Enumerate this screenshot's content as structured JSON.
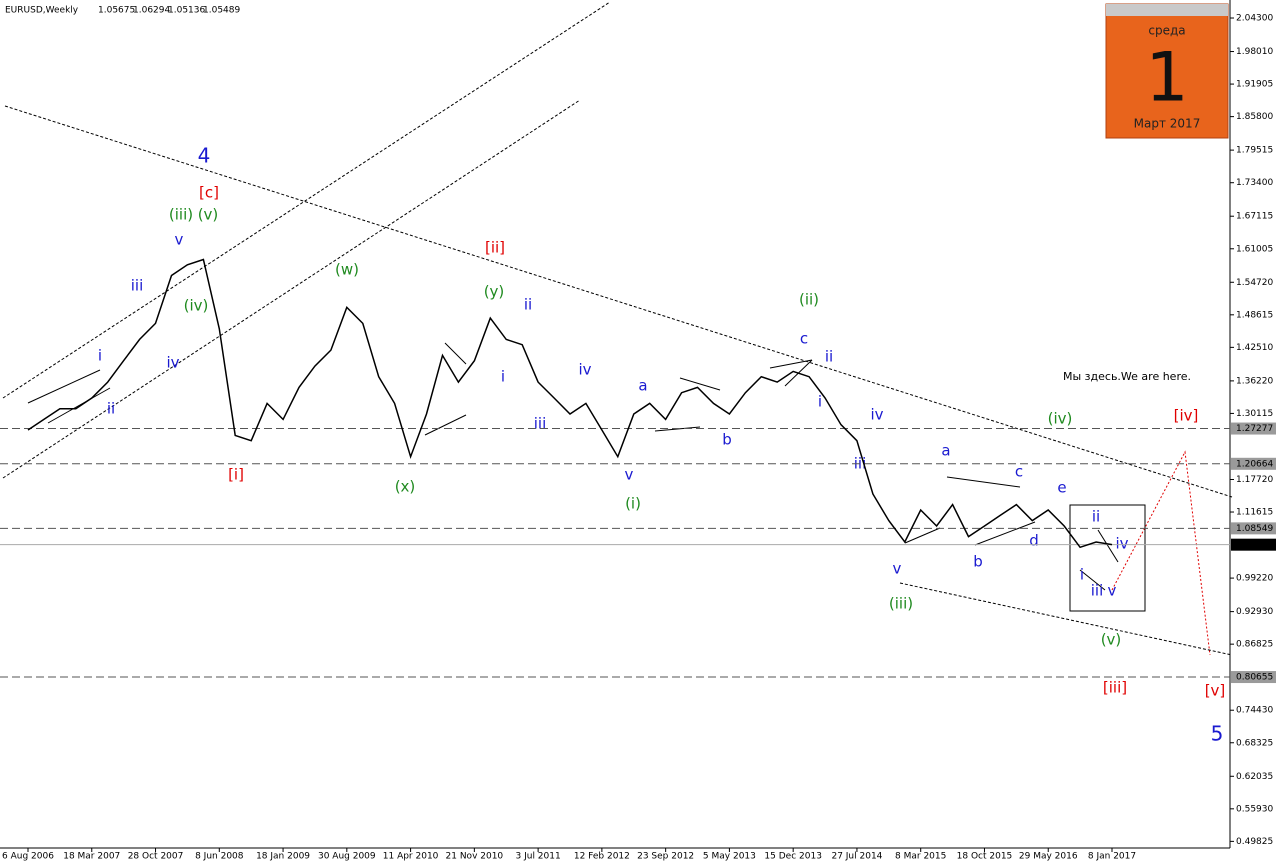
{
  "chart_data": {
    "type": "line",
    "title": "EURUSD,Weekly",
    "ohlc": [
      1.05675,
      1.06294,
      1.05136,
      1.05489
    ],
    "categories": [
      "6 Aug 2006",
      null,
      null,
      null,
      "18 Mar 2007",
      null,
      null,
      null,
      "28 Oct 2007",
      null,
      null,
      null,
      "8 Jun 2008",
      null,
      null,
      null,
      "18 Jan 2009",
      null,
      null,
      null,
      "30 Aug 2009",
      null,
      null,
      null,
      "11 Apr 2010",
      null,
      null,
      null,
      "21 Nov 2010",
      null,
      null,
      null,
      "3 Jul 2011",
      null,
      null,
      null,
      "12 Feb 2012",
      null,
      null,
      null,
      "23 Sep 2012",
      null,
      null,
      null,
      "5 May 2013",
      null,
      null,
      null,
      "15 Dec 2013",
      null,
      null,
      null,
      "27 Jul 2014",
      null,
      null,
      null,
      "8 Mar 2015",
      null,
      null,
      null,
      "18 Oct 2015",
      null,
      null,
      null,
      "29 May 2016",
      null,
      null,
      null,
      "8 Jan 2017"
    ],
    "series": [
      {
        "name": "EURUSD",
        "color": "#000000",
        "values": [
          1.27,
          1.29,
          1.31,
          1.31,
          1.33,
          1.36,
          1.4,
          1.44,
          1.47,
          1.56,
          1.58,
          1.59,
          1.46,
          1.26,
          1.25,
          1.32,
          1.29,
          1.35,
          1.39,
          1.42,
          1.5,
          1.47,
          1.37,
          1.32,
          1.22,
          1.3,
          1.41,
          1.36,
          1.4,
          1.48,
          1.44,
          1.43,
          1.36,
          1.33,
          1.3,
          1.32,
          1.27,
          1.22,
          1.3,
          1.32,
          1.29,
          1.34,
          1.35,
          1.32,
          1.3,
          1.34,
          1.37,
          1.36,
          1.38,
          1.37,
          1.33,
          1.28,
          1.25,
          1.15,
          1.1,
          1.06,
          1.12,
          1.09,
          1.13,
          1.07,
          1.09,
          1.11,
          1.13,
          1.1,
          1.12,
          1.09,
          1.05,
          1.06,
          1.055
        ]
      }
    ],
    "ylim": [
      0.4858,
      2.0768
    ],
    "yticks": [
      {
        "value": 2.043,
        "label": "2.04300"
      },
      {
        "value": 1.9801,
        "label": "1.98010"
      },
      {
        "value": 1.91905,
        "label": "1.91905"
      },
      {
        "value": 1.858,
        "label": "1.85800"
      },
      {
        "value": 1.79515,
        "label": "1.79515"
      },
      {
        "value": 1.734,
        "label": "1.73400"
      },
      {
        "value": 1.67115,
        "label": "1.67115"
      },
      {
        "value": 1.61005,
        "label": "1.61005"
      },
      {
        "value": 1.5472,
        "label": "1.54720"
      },
      {
        "value": 1.48615,
        "label": "1.48615"
      },
      {
        "value": 1.4251,
        "label": "1.42510"
      },
      {
        "value": 1.3622,
        "label": "1.36220"
      },
      {
        "value": 1.30115,
        "label": "1.30115"
      },
      {
        "value": 1.1772,
        "label": "1.17720"
      },
      {
        "value": 1.11615,
        "label": "1.11615"
      },
      {
        "value": 0.9922,
        "label": "0.99220"
      },
      {
        "value": 0.9293,
        "label": "0.92930"
      },
      {
        "value": 0.86825,
        "label": "0.86825"
      },
      {
        "value": 0.7443,
        "label": "0.74430"
      },
      {
        "value": 0.68325,
        "label": "0.68325"
      },
      {
        "value": 0.62035,
        "label": "0.62035"
      },
      {
        "value": 0.5593,
        "label": "0.55930"
      },
      {
        "value": 0.49825,
        "label": "0.49825"
      }
    ],
    "levels": [
      {
        "value": 1.27277,
        "label": "1.27277"
      },
      {
        "value": 1.20664,
        "label": "1.20664"
      },
      {
        "value": 1.08549,
        "label": "1.08549"
      },
      {
        "value": 0.80655,
        "label": "0.80655"
      }
    ],
    "current": {
      "value": 1.05489,
      "label": "1.05489"
    },
    "annotations": [
      "4",
      "i",
      "ii",
      "iii",
      "iv",
      "v",
      "ii",
      "i",
      "iii",
      "iv",
      "v",
      "a",
      "b",
      "c",
      "ii",
      "i",
      "iv",
      "iii",
      "v",
      "a",
      "b",
      "c",
      "d",
      "e",
      "ii",
      "iv",
      "i",
      "iii",
      "v",
      "5",
      "[c]",
      "[i]",
      "[ii]",
      "[iv]",
      "[iii]",
      "[v]",
      "(iii)",
      "(v)",
      "(iv)",
      "(w)",
      "(x)",
      "(y)",
      "(i)",
      "(ii)",
      "(iii)",
      "(iv)",
      "(v)"
    ],
    "note": "Мы здесь.We are here.",
    "calendar": {
      "weekday": "среда",
      "day": 1,
      "month": "Март 2017"
    }
  }
}
